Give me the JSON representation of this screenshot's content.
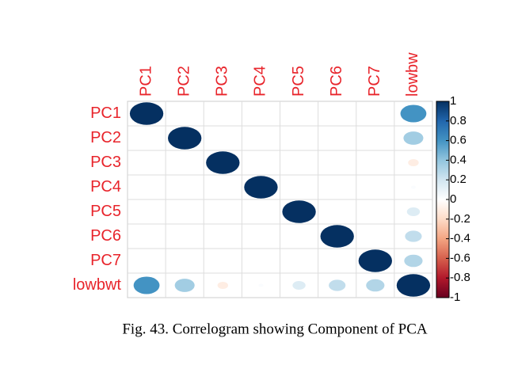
{
  "chart_data": {
    "type": "correlogram",
    "columns": [
      "PC1",
      "PC2",
      "PC3",
      "PC4",
      "PC5",
      "PC6",
      "PC7",
      "lowbw"
    ],
    "rows": [
      "PC1",
      "PC2",
      "PC3",
      "PC4",
      "PC5",
      "PC6",
      "PC7",
      "lowbwt"
    ],
    "matrix": [
      [
        1,
        0,
        0,
        0,
        0,
        0,
        0,
        0.6
      ],
      [
        0,
        1,
        0,
        0,
        0,
        0,
        0,
        0.35
      ],
      [
        0,
        0,
        1,
        0,
        0,
        0,
        0,
        -0.1
      ],
      [
        0,
        0,
        0,
        1,
        0,
        0,
        0,
        0.02
      ],
      [
        0,
        0,
        0,
        0,
        1,
        0,
        0,
        0.15
      ],
      [
        0,
        0,
        0,
        0,
        0,
        1,
        0,
        0.25
      ],
      [
        0,
        0,
        0,
        0,
        0,
        0,
        1,
        0.3
      ],
      [
        0.6,
        0.35,
        -0.1,
        0.02,
        0.15,
        0.25,
        0.3,
        1
      ]
    ],
    "colorscale": [
      "#67001F",
      "#B2182B",
      "#D6604D",
      "#F4A582",
      "#FDDBC7",
      "#FFFFFF",
      "#D1E5F0",
      "#92C5DE",
      "#4393C3",
      "#2166AC",
      "#053061"
    ],
    "clim": [
      -1,
      1
    ],
    "cticks": [
      1,
      0.8,
      0.6,
      0.4,
      0.2,
      0,
      -0.2,
      -0.4,
      -0.6,
      -0.8,
      -1
    ],
    "label_color": "#E8242B",
    "caption": "Fig. 43. Correlogram showing Component of PCA"
  }
}
